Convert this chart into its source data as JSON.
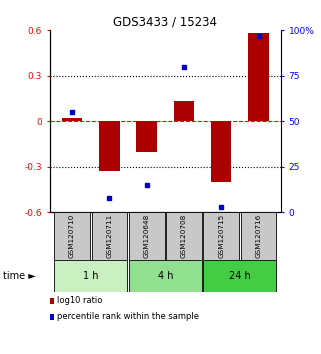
{
  "title": "GDS3433 / 15234",
  "samples": [
    "GSM120710",
    "GSM120711",
    "GSM120648",
    "GSM120708",
    "GSM120715",
    "GSM120716"
  ],
  "log10_ratio": [
    0.02,
    -0.33,
    -0.2,
    0.13,
    -0.4,
    0.58
  ],
  "percentile_rank": [
    55,
    8,
    15,
    80,
    3,
    97
  ],
  "groups": [
    {
      "label": "1 h",
      "indices": [
        0,
        1
      ],
      "color": "#c8f0c0"
    },
    {
      "label": "4 h",
      "indices": [
        2,
        3
      ],
      "color": "#90e090"
    },
    {
      "label": "24 h",
      "indices": [
        4,
        5
      ],
      "color": "#44cc44"
    }
  ],
  "bar_color": "#aa0000",
  "dot_color": "#0000cc",
  "ylim_left": [
    -0.6,
    0.6
  ],
  "ylim_right": [
    0,
    100
  ],
  "yticks_left": [
    -0.6,
    -0.3,
    0.0,
    0.3,
    0.6
  ],
  "yticks_right": [
    0,
    25,
    50,
    75,
    100
  ],
  "ytick_labels_left": [
    "-0.6",
    "-0.3",
    "0",
    "0.3",
    "0.6"
  ],
  "ytick_labels_right": [
    "0",
    "25",
    "50",
    "75",
    "100%"
  ],
  "hlines_dotted": [
    0.3,
    -0.3
  ],
  "bar_width": 0.55,
  "sample_box_color": "#c8c8c8",
  "legend_items": [
    {
      "color": "#aa0000",
      "label": "log10 ratio"
    },
    {
      "color": "#0000cc",
      "label": "percentile rank within the sample"
    }
  ],
  "time_label": "time ►"
}
